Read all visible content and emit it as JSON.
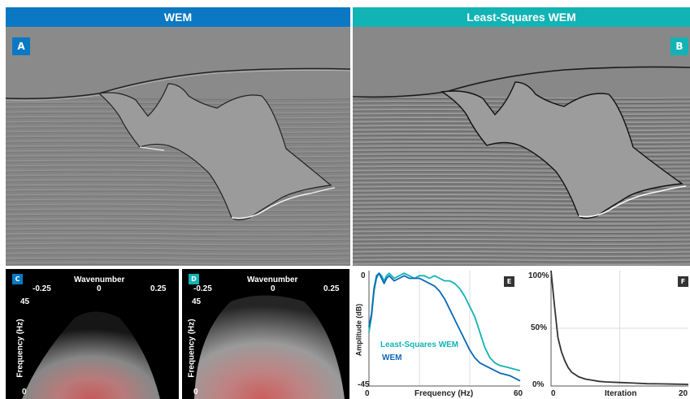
{
  "header": {
    "left_title": "WEM",
    "right_title": "Least-Squares WEM",
    "left_color": "#0a78c2",
    "right_color": "#12b3b5"
  },
  "panel_labels": {
    "a": "A",
    "b": "B",
    "c": "C",
    "d": "D",
    "e": "E",
    "f": "F"
  },
  "spectrum": {
    "top_axis_label": "Wavenumber",
    "ticks_x": [
      "-0.25",
      "0",
      "0.25"
    ],
    "y_label": "Frequency (Hz)",
    "y_top": "45",
    "y_bottom": "0"
  },
  "amplitude_chart": {
    "ylabel": "Amplitude (dB)",
    "xlabel": "Frequency (Hz)",
    "y_top": "0",
    "y_bottom": "-45",
    "x_left": "0",
    "x_right": "60",
    "legend_lswem": "Least-Squares WEM",
    "legend_wem": "WEM"
  },
  "convergence_chart": {
    "xlabel": "Iteration",
    "y_top": "100%",
    "y_mid": "50%",
    "y_bottom": "0%",
    "x_left": "0",
    "x_right": "20"
  },
  "chart_data": [
    {
      "type": "line",
      "xlabel": "Frequency (Hz)",
      "ylabel": "Amplitude (dB)",
      "xlim": [
        0,
        60
      ],
      "ylim": [
        -45,
        0
      ],
      "series": [
        {
          "name": "Least-Squares WEM",
          "color": "#12b3b5",
          "x": [
            0,
            1,
            2,
            3,
            4,
            5,
            6,
            7,
            8,
            10,
            12,
            14,
            16,
            18,
            20,
            22,
            24,
            26,
            28,
            30,
            32,
            34,
            36,
            38,
            40,
            42,
            44,
            46,
            48,
            50,
            52,
            54,
            56,
            58,
            60
          ],
          "y": [
            -24,
            -18,
            -8,
            -3,
            -1,
            -2,
            -4,
            -2,
            -1,
            -3,
            -2,
            -1,
            -2,
            -3,
            -2,
            -2,
            -3,
            -2,
            -3,
            -4,
            -4,
            -5,
            -7,
            -10,
            -14,
            -18,
            -24,
            -30,
            -34,
            -36,
            -37,
            -37.5,
            -38,
            -38.5,
            -39
          ]
        },
        {
          "name": "WEM",
          "color": "#0a68b8",
          "x": [
            0,
            1,
            2,
            3,
            4,
            5,
            6,
            7,
            8,
            10,
            12,
            14,
            16,
            18,
            20,
            22,
            24,
            26,
            28,
            30,
            32,
            34,
            36,
            38,
            40,
            42,
            44,
            46,
            48,
            50,
            52,
            54,
            56,
            58,
            60
          ],
          "y": [
            -22,
            -17,
            -7,
            -2,
            -1,
            -3,
            -5,
            -3,
            -2,
            -4,
            -3,
            -2,
            -3,
            -3,
            -3,
            -4,
            -5,
            -6,
            -8,
            -11,
            -15,
            -19,
            -23,
            -27,
            -31,
            -34,
            -36,
            -37,
            -38,
            -39,
            -40,
            -40.5,
            -41,
            -42,
            -43
          ]
        }
      ]
    },
    {
      "type": "line",
      "xlabel": "Iteration",
      "xlim": [
        0,
        20
      ],
      "ylim": [
        0,
        100
      ],
      "series": [
        {
          "color": "#333333",
          "x": [
            0,
            0.5,
            1,
            1.5,
            2,
            2.5,
            3,
            4,
            5,
            6,
            7,
            8,
            10,
            12,
            14,
            16,
            18,
            20
          ],
          "y": [
            100,
            70,
            42,
            30,
            22,
            16,
            12,
            8,
            6,
            5,
            4,
            3.5,
            3,
            2.5,
            2,
            1.8,
            1.6,
            1.4
          ]
        }
      ]
    }
  ]
}
